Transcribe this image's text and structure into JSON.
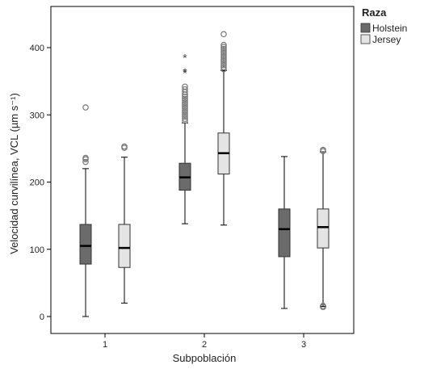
{
  "chart_data": {
    "type": "box",
    "xlabel": "Subpoblación",
    "ylabel": "Velocidad curvilínea, VCL (µm s⁻¹)",
    "categories": [
      "1",
      "2",
      "3"
    ],
    "ylim": [
      -25,
      460
    ],
    "yticks": [
      0,
      100,
      200,
      300,
      400
    ],
    "legend": {
      "title": "Raza",
      "position": "top-right"
    },
    "series": [
      {
        "name": "Holstein",
        "color": "#6b6b6b",
        "boxes": [
          {
            "category": "1",
            "whisker_low": 0,
            "q1": 78,
            "median": 105,
            "q3": 137,
            "whisker_high": 220,
            "outliers": [
              230,
              234,
              236,
              311
            ],
            "extremes": []
          },
          {
            "category": "2",
            "whisker_low": 138,
            "q1": 188,
            "median": 207,
            "q3": 228,
            "whisker_high": 288,
            "outliers": [
              291,
              294,
              297,
              300,
              303,
              306,
              309,
              312,
              315,
              318,
              321,
              324,
              327,
              330,
              334,
              338,
              342
            ],
            "extremes": [
              362,
              364,
              385
            ]
          },
          {
            "category": "3",
            "whisker_low": 12,
            "q1": 89,
            "median": 130,
            "q3": 160,
            "whisker_high": 238,
            "outliers": [],
            "extremes": []
          }
        ]
      },
      {
        "name": "Jersey",
        "color": "#e4e4e4",
        "boxes": [
          {
            "category": "1",
            "whisker_low": 20,
            "q1": 73,
            "median": 102,
            "q3": 137,
            "whisker_high": 237,
            "outliers": [
              251,
              253
            ],
            "extremes": []
          },
          {
            "category": "2",
            "whisker_low": 136,
            "q1": 212,
            "median": 243,
            "q3": 273,
            "whisker_high": 366,
            "outliers": [
              368,
              371,
              374,
              377,
              380,
              383,
              386,
              389,
              392,
              395,
              398,
              401,
              404,
              420
            ],
            "extremes": []
          },
          {
            "category": "3",
            "whisker_low": 15,
            "q1": 102,
            "median": 133,
            "q3": 160,
            "whisker_high": 245,
            "outliers": [
              14,
              16,
              246,
              248
            ],
            "extremes": []
          }
        ]
      }
    ]
  }
}
